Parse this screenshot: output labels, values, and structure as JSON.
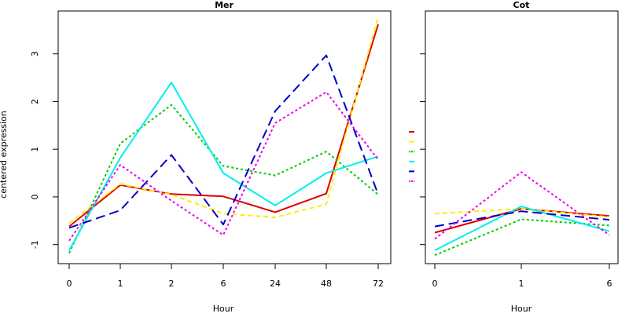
{
  "chart_data": [
    {
      "type": "line",
      "title": "Mer",
      "xlabel": "Hour",
      "ylabel": "centered expression",
      "categories": [
        "0",
        "1",
        "2",
        "6",
        "24",
        "48",
        "72"
      ],
      "yticks": [
        -1,
        0,
        1,
        2,
        3
      ],
      "ylim": [
        -1.4,
        3.9
      ],
      "series": [
        {
          "color": "#dd0000",
          "dash": "solid",
          "values": [
            -0.62,
            0.25,
            0.06,
            0.01,
            -0.32,
            0.07,
            3.62
          ]
        },
        {
          "color": "#ffee00",
          "dash": "dashed",
          "values": [
            -0.55,
            0.27,
            0.05,
            -0.35,
            -0.43,
            -0.15,
            3.78
          ]
        },
        {
          "color": "#00cc00",
          "dash": "dotted",
          "values": [
            -1.18,
            1.12,
            1.93,
            0.65,
            0.45,
            0.95,
            0.05
          ]
        },
        {
          "color": "#00eeee",
          "dash": "solid",
          "values": [
            -1.12,
            0.82,
            2.4,
            0.5,
            -0.18,
            0.5,
            0.85
          ]
        },
        {
          "color": "#0000cc",
          "dash": "longdash",
          "values": [
            -0.65,
            -0.28,
            0.88,
            -0.58,
            1.8,
            2.97,
            0.05
          ]
        },
        {
          "color": "#ee00ee",
          "dash": "dotted",
          "values": [
            -0.92,
            0.67,
            -0.08,
            -0.8,
            1.55,
            2.2,
            0.78
          ]
        }
      ]
    },
    {
      "type": "line",
      "title": "Cot",
      "xlabel": "Hour",
      "ylabel": "",
      "categories": [
        "0",
        "1",
        "6"
      ],
      "ylim": [
        -1.4,
        3.9
      ],
      "series": [
        {
          "color": "#dd0000",
          "dash": "solid",
          "values": [
            -0.75,
            -0.25,
            -0.4
          ]
        },
        {
          "color": "#ffee00",
          "dash": "dashed",
          "values": [
            -0.35,
            -0.25,
            -0.42
          ]
        },
        {
          "color": "#00cc00",
          "dash": "dotted",
          "values": [
            -1.22,
            -0.47,
            -0.6
          ]
        },
        {
          "color": "#00eeee",
          "dash": "solid",
          "values": [
            -1.12,
            -0.2,
            -0.72
          ]
        },
        {
          "color": "#0000cc",
          "dash": "longdash",
          "values": [
            -0.62,
            -0.3,
            -0.48
          ]
        },
        {
          "color": "#ee00ee",
          "dash": "dotted",
          "values": [
            -0.88,
            0.52,
            -0.8
          ]
        }
      ]
    }
  ]
}
